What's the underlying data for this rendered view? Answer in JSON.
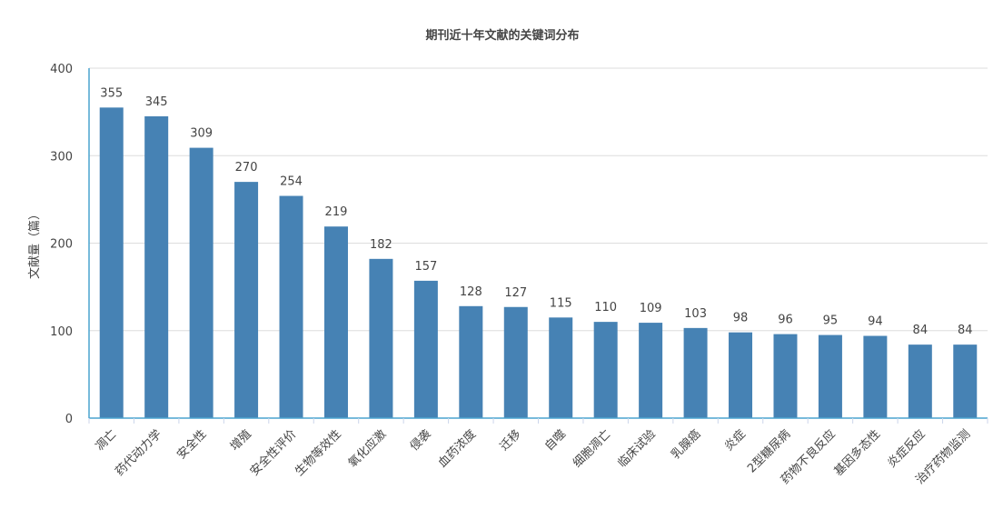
{
  "chart_data": {
    "type": "bar",
    "title": "期刊近十年文献的关键词分布",
    "xlabel": "",
    "ylabel": "文献量（篇）",
    "ylim": [
      0,
      400
    ],
    "yticks": [
      0,
      100,
      200,
      300,
      400
    ],
    "grid": true,
    "legend": "none",
    "bar_color": "#4682b4",
    "categories": [
      "凋亡",
      "药代动力学",
      "安全性",
      "增殖",
      "安全性评价",
      "生物等效性",
      "氧化应激",
      "侵袭",
      "血药浓度",
      "迁移",
      "自噬",
      "细胞凋亡",
      "临床试验",
      "乳腺癌",
      "炎症",
      "2型糖尿病",
      "药物不良反应",
      "基因多态性",
      "炎症反应",
      "治疗药物监测"
    ],
    "values": [
      355,
      345,
      309,
      270,
      254,
      219,
      182,
      157,
      128,
      127,
      115,
      110,
      109,
      103,
      98,
      96,
      95,
      94,
      84,
      84
    ]
  }
}
